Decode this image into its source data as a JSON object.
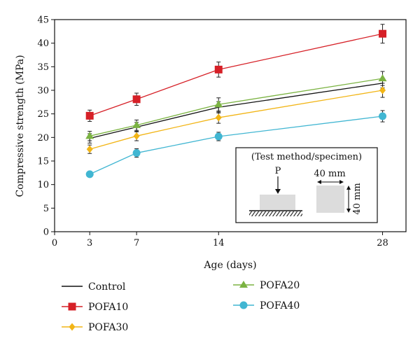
{
  "chart_data": {
    "type": "line",
    "title": "",
    "xlabel": "Age (days)",
    "ylabel": "Compressive strength (MPa)",
    "xlim": [
      0,
      30
    ],
    "ylim": [
      0,
      45
    ],
    "xticks": [
      0,
      3,
      7,
      14,
      28
    ],
    "yticks": [
      0,
      5,
      10,
      15,
      20,
      25,
      30,
      35,
      40,
      45
    ],
    "x": [
      3,
      7,
      14,
      28
    ],
    "grid": false,
    "legend_position": "bottom",
    "series": [
      {
        "name": "Control",
        "color": "#111111",
        "marker": "none",
        "values": [
          19.8,
          22.2,
          26.4,
          31.5
        ],
        "errors": [
          1.0,
          1.0,
          1.2,
          1.0
        ]
      },
      {
        "name": "POFA10",
        "color": "#d62027",
        "marker": "square",
        "values": [
          24.6,
          28.1,
          34.4,
          42.0
        ],
        "errors": [
          1.2,
          1.3,
          1.6,
          2.0
        ]
      },
      {
        "name": "POFA20",
        "color": "#7bb342",
        "marker": "triangle",
        "values": [
          20.3,
          22.6,
          27.0,
          32.5
        ],
        "errors": [
          1.0,
          1.1,
          1.4,
          1.5
        ]
      },
      {
        "name": "POFA30",
        "color": "#f2b516",
        "marker": "diamond",
        "values": [
          17.5,
          20.3,
          24.2,
          30.0
        ],
        "errors": [
          0.9,
          1.0,
          1.2,
          1.5
        ]
      },
      {
        "name": "POFA40",
        "color": "#41b6d2",
        "marker": "circle",
        "values": [
          12.2,
          16.7,
          20.2,
          24.5
        ],
        "errors": [
          0.0,
          0.9,
          0.9,
          1.2
        ]
      }
    ],
    "legend_order": [
      "Control",
      "POFA20",
      "POFA10",
      "POFA40",
      "POFA30"
    ],
    "inset": {
      "title": "(Test method/specimen)",
      "load_label": "P",
      "width_label": "40 mm",
      "height_label": "40 mm"
    }
  }
}
